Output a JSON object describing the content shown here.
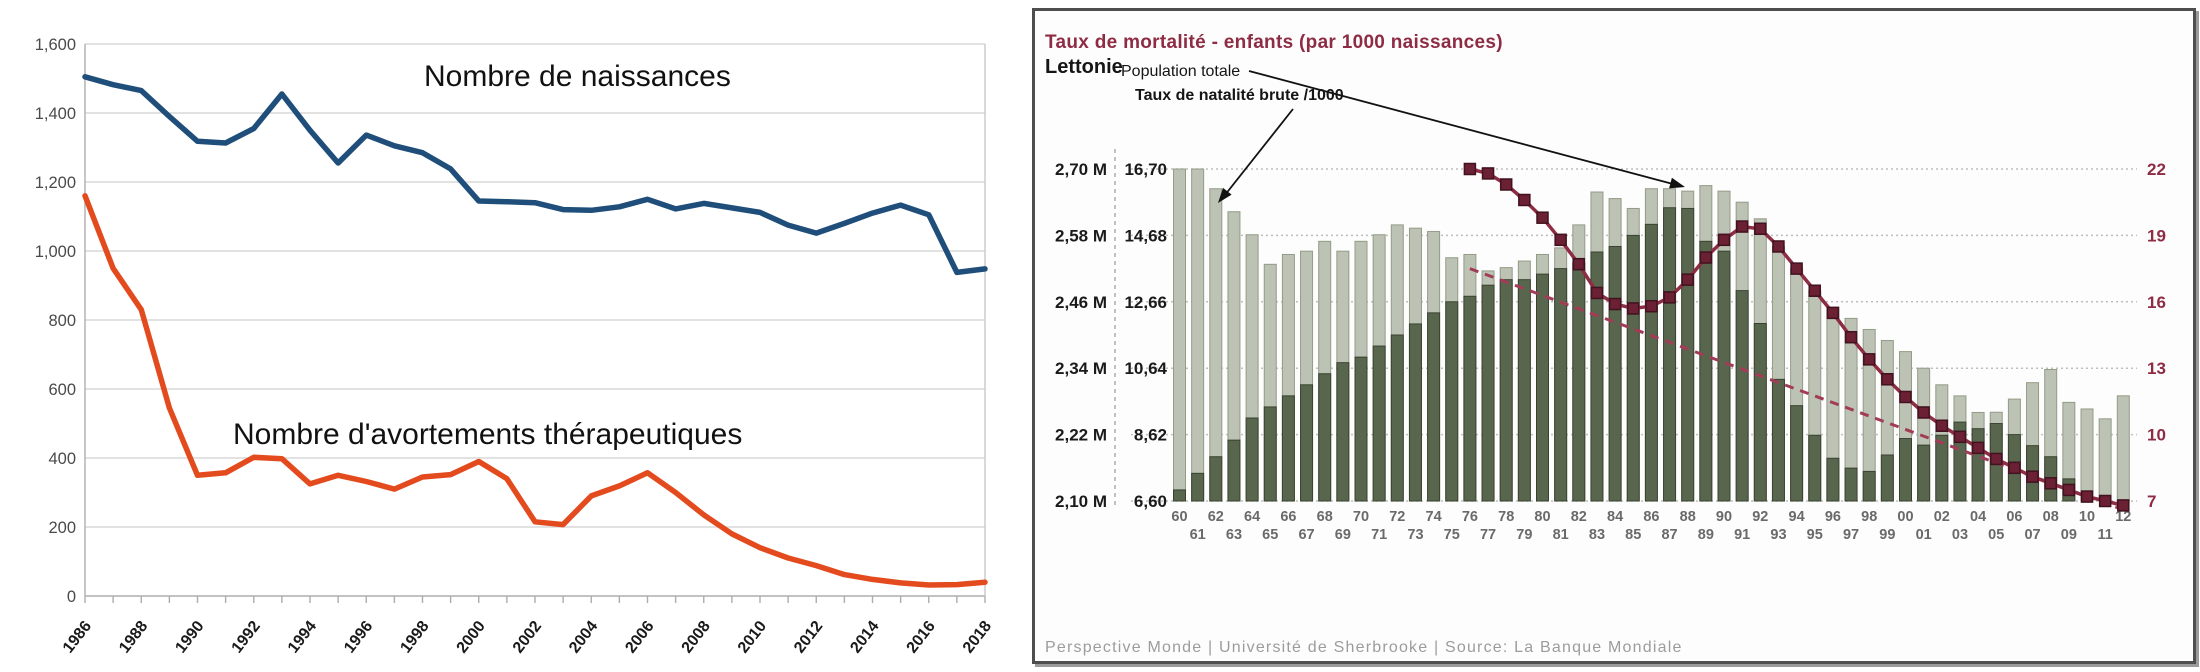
{
  "chart_data": [
    {
      "type": "line",
      "title": "",
      "xlabel": "",
      "ylabel": "",
      "ylim": [
        0,
        1600
      ],
      "grid": true,
      "y_tick_labels": [
        "1,600",
        "1,400",
        "1,200",
        "1,000",
        "800",
        "600",
        "400",
        "200",
        "0"
      ],
      "y_tick_values": [
        1600,
        1400,
        1200,
        1000,
        800,
        600,
        400,
        200,
        0
      ],
      "x_tick_labels": [
        "1986",
        "1988",
        "1990",
        "1992",
        "1994",
        "1996",
        "1998",
        "2000",
        "2002",
        "2004",
        "2006",
        "2008",
        "2010",
        "2012",
        "2014",
        "2016",
        "2018"
      ],
      "x": [
        1986,
        1987,
        1988,
        1989,
        1990,
        1991,
        1992,
        1993,
        1994,
        1995,
        1996,
        1997,
        1998,
        1999,
        2000,
        2001,
        2002,
        2003,
        2004,
        2005,
        2006,
        2007,
        2008,
        2009,
        2010,
        2011,
        2012,
        2013,
        2014,
        2015,
        2016,
        2017,
        2018
      ],
      "series": [
        {
          "name": "Nombre de naissances",
          "color": "#1F4E7B",
          "values": [
            1505,
            1482,
            1465,
            1390,
            1318,
            1313,
            1355,
            1455,
            1350,
            1255,
            1336,
            1305,
            1285,
            1238,
            1145,
            1143,
            1140,
            1120,
            1118,
            1128,
            1150,
            1122,
            1138,
            1125,
            1112,
            1075,
            1052,
            1080,
            1110,
            1133,
            1105,
            938,
            948
          ]
        },
        {
          "name": "Nombre d'avortements thérapeutiques",
          "color": "#E34B1E",
          "values": [
            1160,
            950,
            830,
            545,
            350,
            357,
            402,
            398,
            325,
            350,
            332,
            310,
            345,
            352,
            390,
            340,
            215,
            207,
            290,
            319,
            357,
            300,
            235,
            180,
            140,
            110,
            88,
            62,
            48,
            38,
            32,
            33,
            40
          ]
        }
      ]
    },
    {
      "type": "bar",
      "title": "Taux de mortalité - enfants (par 1000 naissances)",
      "region": "Lettonie",
      "legend_population": "Population totale",
      "legend_natalite": "Taux de natalité brute /1000",
      "footer": "Perspective Monde | Université de Sherbrooke | Source: La Banque Mondiale",
      "x": [
        1960,
        1961,
        1962,
        1963,
        1964,
        1965,
        1966,
        1967,
        1968,
        1969,
        1970,
        1971,
        1972,
        1973,
        1974,
        1975,
        1976,
        1977,
        1978,
        1979,
        1980,
        1981,
        1982,
        1983,
        1984,
        1985,
        1986,
        1987,
        1988,
        1989,
        1990,
        1991,
        1992,
        1993,
        1994,
        1995,
        1996,
        1997,
        1998,
        1999,
        2000,
        2001,
        2002,
        2003,
        2004,
        2005,
        2006,
        2007,
        2008,
        2009,
        2010,
        2011,
        2012
      ],
      "axes": {
        "left_population": {
          "labels": [
            "2,70 M",
            "2,58 M",
            "2,46 M",
            "2,34 M",
            "2,22 M",
            "2,10 M"
          ],
          "values": [
            2.7,
            2.58,
            2.46,
            2.34,
            2.22,
            2.1
          ]
        },
        "left_natalite": {
          "labels": [
            "16,70",
            "14,68",
            "12,66",
            "10,64",
            "8,62",
            "6,60"
          ],
          "values": [
            16.7,
            14.68,
            12.66,
            10.64,
            8.62,
            6.6
          ]
        },
        "right_mortalite": {
          "labels": [
            "22",
            "19",
            "16",
            "13",
            "10",
            "7"
          ],
          "values": [
            22,
            19,
            16,
            13,
            10,
            7
          ]
        }
      },
      "series": [
        {
          "name": "Taux de natalité brute /1000",
          "type": "bar",
          "color": "#BCC2B4",
          "values": [
            16.7,
            16.7,
            16.1,
            15.4,
            14.7,
            13.8,
            14.1,
            14.2,
            14.5,
            14.2,
            14.5,
            14.7,
            15.0,
            14.9,
            14.8,
            14.0,
            14.1,
            13.6,
            13.7,
            13.9,
            14.1,
            14.3,
            15.0,
            16.0,
            15.8,
            15.5,
            16.1,
            16.1,
            15.5,
            14.5,
            14.2,
            13.0,
            12.0,
            10.3,
            9.5,
            8.6,
            7.9,
            7.6,
            7.5,
            8.0,
            8.5,
            8.3,
            8.6,
            9.0,
            8.8,
            9.3,
            9.7,
            10.2,
            10.6,
            9.6,
            9.4,
            9.1,
            9.8
          ]
        },
        {
          "name": "Population totale",
          "type": "bar",
          "unit": "millions",
          "color": "#59664E",
          "values": [
            2.12,
            2.15,
            2.18,
            2.21,
            2.25,
            2.27,
            2.29,
            2.31,
            2.33,
            2.35,
            2.36,
            2.38,
            2.4,
            2.42,
            2.44,
            2.46,
            2.47,
            2.49,
            2.5,
            2.5,
            2.51,
            2.52,
            2.53,
            2.55,
            2.56,
            2.58,
            2.6,
            2.63,
            2.66,
            2.67,
            2.66,
            2.64,
            2.61,
            2.56,
            2.52,
            2.48,
            2.45,
            2.43,
            2.41,
            2.39,
            2.37,
            2.34,
            2.31,
            2.29,
            2.26,
            2.24,
            2.22,
            2.2,
            2.18,
            2.14,
            2.1,
            2.06,
            2.03
          ]
        },
        {
          "name": "Taux de mortalité - enfants (par 1000 naissances)",
          "type": "line",
          "marker": "square",
          "color": "#8E2C44",
          "start_year": 1976,
          "values": [
            22.0,
            21.8,
            21.3,
            20.6,
            19.8,
            18.8,
            17.7,
            16.4,
            15.9,
            15.7,
            15.8,
            16.2,
            17.0,
            18.0,
            18.8,
            19.4,
            19.3,
            18.5,
            17.5,
            16.5,
            15.5,
            14.4,
            13.4,
            12.5,
            11.7,
            11.0,
            10.4,
            9.9,
            9.4,
            8.9,
            8.5,
            8.1,
            7.8,
            7.5,
            7.2,
            7.0,
            6.8
          ]
        }
      ],
      "trend_line": {
        "from_year": 1976,
        "from_value": 17.5,
        "to_year": 2012,
        "to_value": 6.6,
        "style": "dashed",
        "color": "#A23B56"
      }
    }
  ],
  "colors": {
    "naissances_line": "#1F4E7B",
    "avortements_line": "#E34B1E",
    "mortality_line": "#8E2C44",
    "bar_light": "#BCC2B4",
    "bar_dark": "#59664E",
    "title_red": "#8E2C44"
  }
}
